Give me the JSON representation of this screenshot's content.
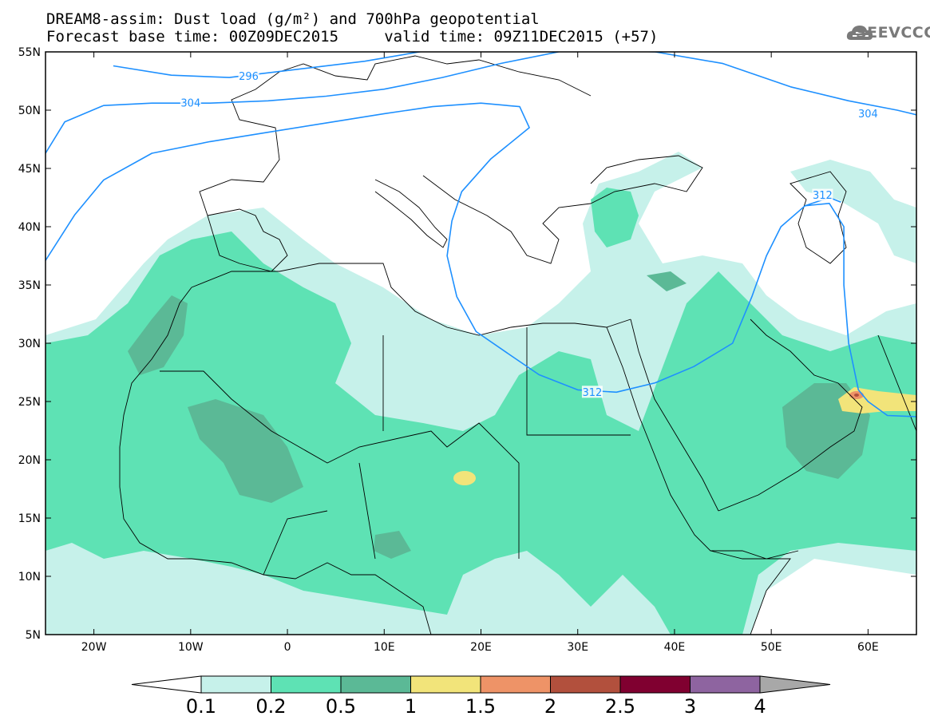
{
  "header": {
    "title_line1": "DREAM8-assim: Dust load (g/m²) and 700hPa geopotential",
    "title_line2": "Forecast base time: 00Z09DEC2015     valid time: 09Z11DEC2015 (+57)"
  },
  "logo": {
    "text": "SEEVCCC",
    "icon": "cloud-icon",
    "color": "#7a7a7a"
  },
  "map": {
    "lon_range": [
      -25,
      65
    ],
    "lat_range": [
      5,
      55
    ],
    "lat_ticks": [
      {
        "value": 55,
        "label": "55N"
      },
      {
        "value": 50,
        "label": "50N"
      },
      {
        "value": 45,
        "label": "45N"
      },
      {
        "value": 40,
        "label": "40N"
      },
      {
        "value": 35,
        "label": "35N"
      },
      {
        "value": 30,
        "label": "30N"
      },
      {
        "value": 25,
        "label": "25N"
      },
      {
        "value": 20,
        "label": "20N"
      },
      {
        "value": 15,
        "label": "15N"
      },
      {
        "value": 10,
        "label": "10N"
      },
      {
        "value": 5,
        "label": "5N"
      }
    ],
    "lon_ticks": [
      {
        "value": -20,
        "label": "20W"
      },
      {
        "value": -10,
        "label": "10W"
      },
      {
        "value": 0,
        "label": "0"
      },
      {
        "value": 10,
        "label": "10E"
      },
      {
        "value": 20,
        "label": "20E"
      },
      {
        "value": 30,
        "label": "30E"
      },
      {
        "value": 40,
        "label": "40E"
      },
      {
        "value": 50,
        "label": "50E"
      },
      {
        "value": 60,
        "label": "60E"
      }
    ],
    "contour_color": "#1e90ff",
    "contours": [
      {
        "value": 296,
        "label": "296",
        "points": [
          [
            -18,
            53.8
          ],
          [
            -12,
            53
          ],
          [
            -6,
            52.8
          ],
          [
            -3,
            53.1
          ],
          [
            2,
            53.6
          ],
          [
            8,
            54.2
          ],
          [
            15,
            55.2
          ]
        ],
        "label_at": [
          -4,
          52.9
        ]
      },
      {
        "value": 304,
        "label": "304",
        "points": [
          [
            -25,
            46.3
          ],
          [
            -23,
            49
          ],
          [
            -19,
            50.4
          ],
          [
            -14,
            50.6
          ],
          [
            -8,
            50.6
          ],
          [
            -2,
            50.8
          ],
          [
            4,
            51.2
          ],
          [
            10,
            51.8
          ],
          [
            16,
            52.8
          ],
          [
            22,
            54
          ],
          [
            28,
            55
          ]
        ],
        "label_at": [
          -10,
          50.6
        ]
      },
      {
        "value": 304,
        "label": "304",
        "points": [
          [
            30,
            55.2
          ],
          [
            38,
            55
          ],
          [
            45,
            54
          ],
          [
            52,
            52
          ],
          [
            58,
            50.8
          ],
          [
            63,
            50
          ],
          [
            65,
            49.6
          ]
        ],
        "label_at": [
          60,
          49.7
        ]
      },
      {
        "value": 312,
        "label": "312",
        "points": [
          [
            -25,
            37.1
          ],
          [
            -22,
            41
          ],
          [
            -19,
            44
          ],
          [
            -14,
            46.3
          ],
          [
            -8,
            47.3
          ],
          [
            -2,
            48.1
          ],
          [
            4,
            48.9
          ],
          [
            10,
            49.7
          ],
          [
            15,
            50.3
          ],
          [
            20,
            50.6
          ],
          [
            24,
            50.3
          ],
          [
            25,
            48.5
          ],
          [
            21,
            45.8
          ],
          [
            18,
            43
          ],
          [
            17,
            40.5
          ],
          [
            16.5,
            37.5
          ],
          [
            17.5,
            34
          ],
          [
            19.5,
            31
          ],
          [
            23,
            29
          ],
          [
            26,
            27.3
          ],
          [
            30,
            26
          ],
          [
            34,
            25.8
          ],
          [
            38,
            26.6
          ],
          [
            42,
            28
          ],
          [
            46,
            30
          ],
          [
            48,
            34
          ],
          [
            49.5,
            37.5
          ],
          [
            51,
            40
          ],
          [
            53.5,
            41.8
          ],
          [
            56,
            42
          ],
          [
            57.5,
            40
          ],
          [
            57.5,
            35
          ],
          [
            58,
            30
          ],
          [
            59,
            26
          ],
          [
            60,
            25
          ],
          [
            62,
            23.8
          ],
          [
            65,
            23.7
          ]
        ],
        "label_at": [
          31.5,
          25.8
        ]
      },
      {
        "value": 312,
        "label": "312",
        "points": [
          [
            53.5,
            41.8
          ],
          [
            56,
            42.5
          ],
          [
            57.2,
            42.1
          ]
        ],
        "label_at": [
          55.3,
          42.7
        ]
      }
    ]
  },
  "dust": {
    "levels": [
      {
        "min": 0.1,
        "color": "#c6f1ea"
      },
      {
        "min": 0.2,
        "color": "#5ee2b4"
      },
      {
        "min": 0.5,
        "color": "#5bb996"
      },
      {
        "min": 1.0,
        "color": "#f2e47a"
      },
      {
        "min": 1.5,
        "color": "#ee9367"
      },
      {
        "min": 2.0,
        "color": "#b2503d"
      }
    ]
  },
  "colorbar": {
    "labels": [
      "0.1",
      "0.2",
      "0.5",
      "1",
      "1.5",
      "2",
      "2.5",
      "3",
      "4"
    ],
    "colors": [
      "#c6f1ea",
      "#5ee2b4",
      "#5bb996",
      "#f2e47a",
      "#ee9367",
      "#b2503d",
      "#800030",
      "#8e64a0"
    ],
    "under_color": "#ffffff",
    "over_color": "#a8a8a8"
  }
}
